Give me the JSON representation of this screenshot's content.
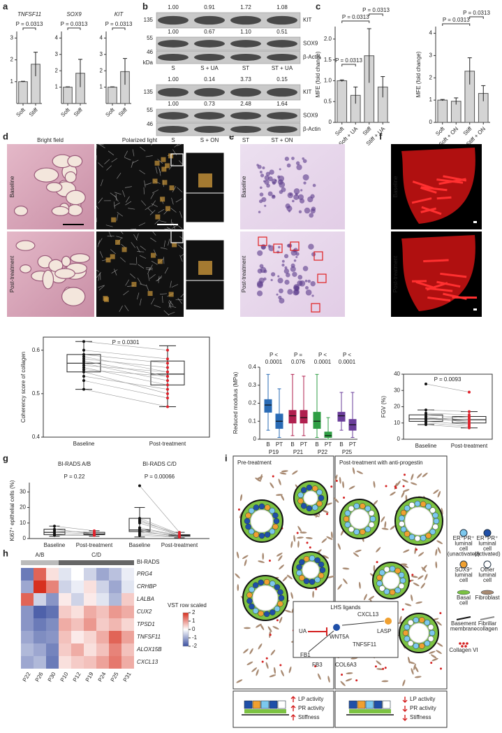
{
  "a": {
    "label": "a",
    "charts": [
      {
        "title": "TNFSF11",
        "p": "P = 0.0313",
        "categories": [
          "Soft",
          "Stiff"
        ],
        "values": [
          1,
          1.8
        ],
        "errors": [
          0.02,
          0.55
        ],
        "ylim": [
          0,
          3.3
        ],
        "yticks": [
          1,
          2,
          3
        ]
      },
      {
        "title": "SOX9",
        "p": "P = 0.0313",
        "categories": [
          "Soft",
          "Stiff"
        ],
        "values": [
          1,
          1.85
        ],
        "errors": [
          0.02,
          0.85
        ],
        "ylim": [
          0,
          4.4
        ],
        "yticks": [
          1,
          2,
          3,
          4
        ]
      },
      {
        "title": "KIT",
        "p": "P = 0.0313",
        "categories": [
          "Soft",
          "Stiff"
        ],
        "values": [
          1,
          1.95
        ],
        "errors": [
          0.02,
          0.8
        ],
        "ylim": [
          0,
          4.4
        ],
        "yticks": [
          1,
          2,
          3,
          4
        ]
      }
    ]
  },
  "b": {
    "label": "b",
    "top": {
      "rows": [
        [
          "1.00",
          "0.91",
          "1.72",
          "1.08"
        ],
        [
          "1.00",
          "0.67",
          "1.10",
          "0.51"
        ]
      ],
      "bands": [
        "KIT",
        "SOX9",
        "β-Actin"
      ],
      "markers": [
        "135",
        "55",
        "46"
      ],
      "unit": "kDa",
      "lanes": [
        "S",
        "S + UA",
        "ST",
        "ST + UA"
      ]
    },
    "bottom": {
      "rows": [
        [
          "1.00",
          "0.14",
          "3.73",
          "0.15"
        ],
        [
          "1.00",
          "0.73",
          "2.48",
          "1.64"
        ]
      ],
      "bands": [
        "KIT",
        "SOX9",
        "β-Actin"
      ],
      "markers": [
        "135",
        "55",
        "46"
      ],
      "lanes": [
        "S",
        "S + ON",
        "ST",
        "ST + ON"
      ]
    }
  },
  "c": {
    "label": "c",
    "charts": [
      {
        "ylabel": "MFE (fold change)",
        "p": [
          "P = 0.0313",
          "P = 0.0313",
          "P = 0.0313"
        ],
        "categories": [
          "Soft",
          "Soft + UA",
          "Stiff",
          "Stiff + UA"
        ],
        "values": [
          1,
          0.65,
          1.6,
          0.85
        ],
        "errors": [
          0.02,
          0.2,
          0.65,
          0.25
        ],
        "ylim": [
          0,
          2.3
        ],
        "yticks": [
          0,
          0.5,
          {
            "value": 1,
            "label": "1.0"
          },
          1.5,
          {
            "value": 2,
            "label": "2.0"
          }
        ]
      },
      {
        "ylabel": "MFE (fold change)",
        "p": [
          "P = 0.0313",
          "P = 0.0313"
        ],
        "categories": [
          "Soft",
          "Soft + ON",
          "Stiff",
          "Stiff + ON"
        ],
        "values": [
          1,
          0.95,
          2.3,
          1.3
        ],
        "errors": [
          0.03,
          0.15,
          0.6,
          0.35
        ],
        "ylim": [
          0,
          4.3
        ],
        "yticks": [
          0,
          1,
          2,
          3,
          4
        ]
      }
    ]
  },
  "d": {
    "label": "d",
    "columns": [
      "Bright field",
      "Polarized light"
    ],
    "rows": [
      "Baseline",
      "Post-treatment"
    ],
    "plot": {
      "ylabel": "Coherency score of collagen",
      "p": "P = 0.0301",
      "categories": [
        "Baseline",
        "Post-treatment"
      ],
      "ylim": [
        0.4,
        0.63
      ],
      "yticks": [
        0.4,
        0.5,
        0.6
      ],
      "boxes": [
        {
          "min": 0.51,
          "q1": 0.55,
          "median": 0.57,
          "q3": 0.59,
          "max": 0.62
        },
        {
          "min": 0.47,
          "q1": 0.52,
          "median": 0.545,
          "q3": 0.575,
          "max": 0.61
        }
      ],
      "baseline_points": [
        0.62,
        0.6,
        0.59,
        0.585,
        0.58,
        0.575,
        0.57,
        0.565,
        0.56,
        0.555,
        0.55,
        0.54,
        0.53,
        0.51
      ],
      "post_points": [
        0.6,
        0.58,
        0.57,
        0.55,
        0.56,
        0.54,
        0.53,
        0.55,
        0.52,
        0.54,
        0.5,
        0.51,
        0.49,
        0.47
      ]
    }
  },
  "e": {
    "label": "e",
    "rows": [
      "Baseline",
      "Post-treatment"
    ],
    "plot": {
      "ylabel": "Reduced modulus (MPa)",
      "ylim": [
        0,
        0.4
      ],
      "yticks": [
        0,
        0.1,
        0.2,
        0.3,
        0.4
      ],
      "sub": [
        "B",
        "PT"
      ],
      "groups": [
        {
          "name": "P19",
          "p": [
            "P <",
            "0.0001"
          ],
          "color": "#2a6bb5",
          "boxes": [
            {
              "min": 0.05,
              "q1": 0.15,
              "median": 0.19,
              "q3": 0.22,
              "max": 0.36
            },
            {
              "min": 0.01,
              "q1": 0.06,
              "median": 0.1,
              "q3": 0.14,
              "max": 0.28
            }
          ]
        },
        {
          "name": "P21",
          "p": [
            "P =",
            "0.076"
          ],
          "color": "#b0204f",
          "boxes": [
            {
              "min": 0.02,
              "q1": 0.09,
              "median": 0.13,
              "q3": 0.16,
              "max": 0.36
            },
            {
              "min": 0.02,
              "q1": 0.09,
              "median": 0.12,
              "q3": 0.16,
              "max": 0.35
            }
          ]
        },
        {
          "name": "P22",
          "p": [
            "P <",
            "0.0001"
          ],
          "color": "#2f9e44",
          "boxes": [
            {
              "min": 0.01,
              "q1": 0.06,
              "median": 0.1,
              "q3": 0.15,
              "max": 0.36
            },
            {
              "min": 0,
              "q1": 0.01,
              "median": 0.02,
              "q3": 0.04,
              "max": 0.12
            }
          ]
        },
        {
          "name": "P25",
          "p": [
            "P <",
            "0.0001"
          ],
          "color": "#6a3d9a",
          "boxes": [
            {
              "min": 0.05,
              "q1": 0.1,
              "median": 0.13,
              "q3": 0.15,
              "max": 0.26
            },
            {
              "min": 0.01,
              "q1": 0.05,
              "median": 0.08,
              "q3": 0.11,
              "max": 0.26
            }
          ]
        }
      ]
    }
  },
  "f": {
    "label": "f",
    "rows": [
      "Baseline",
      "Post-treatment"
    ],
    "plot": {
      "ylabel": "FGV (%)",
      "p": "P = 0.0093",
      "categories": [
        "Baseline",
        "Post-treatment"
      ],
      "ylim": [
        0,
        40
      ],
      "yticks": [
        0,
        10,
        20,
        30,
        40
      ],
      "boxes": [
        {
          "min": 9,
          "q1": 11,
          "median": 12.5,
          "q3": 15,
          "max": 18
        },
        {
          "min": 7,
          "q1": 10,
          "median": 12,
          "q3": 14,
          "max": 17
        }
      ],
      "baseline_points": [
        34,
        18,
        16,
        15,
        14,
        13,
        12.5,
        12,
        11,
        10,
        9
      ],
      "post_points": [
        29,
        17,
        15,
        13,
        10,
        12,
        11,
        14,
        9,
        8,
        7
      ]
    }
  },
  "g": {
    "label": "g",
    "ylabel": "Ki67⁺ epithelial cells (%)",
    "ylim": [
      0,
      36
    ],
    "yticks": [
      0,
      10,
      20,
      30
    ],
    "groups": [
      {
        "title": "BI-RADS A/B",
        "p": "P = 0.22",
        "categories": [
          "Baseline",
          "Post-treatment"
        ],
        "boxes": [
          {
            "min": 1.5,
            "q1": 2.5,
            "median": 4,
            "q3": 6,
            "max": 8
          },
          {
            "min": 1.5,
            "q1": 2.5,
            "median": 3,
            "q3": 4,
            "max": 5
          }
        ],
        "baseline_points": [
          8,
          6,
          5,
          4,
          3,
          2
        ],
        "post_points": [
          5,
          3,
          4,
          3,
          2,
          2
        ]
      },
      {
        "title": "BI-RADS C/D",
        "p": "P = 0.00066",
        "categories": [
          "Baseline",
          "Post-treatment"
        ],
        "boxes": [
          {
            "min": 1,
            "q1": 4.5,
            "median": 5.5,
            "q3": 13,
            "max": 20
          },
          {
            "min": 0.5,
            "q1": 1.5,
            "median": 2,
            "q3": 2.5,
            "max": 4
          }
        ],
        "baseline_points": [
          34,
          13,
          12,
          11,
          10,
          7,
          6,
          5,
          5,
          4,
          3,
          2
        ],
        "post_points": [
          4,
          3,
          2,
          3,
          2,
          2,
          2,
          1,
          1,
          2,
          1,
          1
        ]
      }
    ]
  },
  "h": {
    "label": "h",
    "groups": [
      "A/B",
      "C/D"
    ],
    "annotation": "BI-RADS",
    "genes": [
      "PRG4",
      "CRHBP",
      "LALBA",
      "CUX2",
      "TPSD1",
      "TNFSF11",
      "ALOX15B",
      "CXCL13"
    ],
    "samples": [
      "P22",
      "P26",
      "P30",
      "P10",
      "P12",
      "P19",
      "P24",
      "P25",
      "P31"
    ],
    "legend_title": "VST row scaled",
    "legend_ticks": [
      2,
      1,
      0,
      -1,
      -2
    ],
    "values": [
      [
        -1.5,
        1.5,
        0.3,
        -0.3,
        0,
        -0.5,
        -1,
        -0.7,
        -0.2
      ],
      [
        -1,
        2,
        1.2,
        -0.5,
        -0.2,
        0.3,
        -0.5,
        -1,
        -0.3
      ],
      [
        1.5,
        -0.5,
        -1.2,
        0.2,
        -0.5,
        0.2,
        -0.3,
        -0.8,
        0.5
      ],
      [
        -1.2,
        -1.8,
        -1.6,
        0.5,
        0.3,
        0.8,
        0.6,
        1,
        0.8
      ],
      [
        -1.2,
        -1.5,
        -1.3,
        0.8,
        0.6,
        1,
        0.5,
        0.7,
        0.4
      ],
      [
        -1,
        -1.3,
        -1.2,
        0.6,
        0.2,
        0.4,
        0.8,
        1.5,
        0.9
      ],
      [
        -0.8,
        -1,
        -1.4,
        0.5,
        0.8,
        0.3,
        0.6,
        1.2,
        0.6
      ],
      [
        -1,
        -0.8,
        -1.5,
        0.3,
        0.5,
        0.6,
        0.9,
        1.3,
        0.8
      ]
    ]
  },
  "i": {
    "label": "i",
    "pre": "Pre-treatment",
    "post": "Post-treatment with anti-progestin",
    "lhs": "LHS ligands",
    "items": [
      "UA",
      "CXCL13",
      "WNT5A",
      "TNFSF11",
      "LASP",
      "FB1",
      "FB3",
      "COL6A3"
    ],
    "effects": [
      "LP activity",
      "PR activity",
      "Stiffness"
    ],
    "legend": [
      {
        "lines": [
          "ER⁺PR⁺",
          "luminal",
          "cell",
          "(unactivated)"
        ]
      },
      {
        "lines": [
          "ER⁺PR⁺",
          "luminal",
          "cell",
          "(activated)"
        ]
      },
      {
        "lines": [
          "SOX9⁺",
          "luminal",
          "cell"
        ]
      },
      {
        "lines": [
          "Other",
          "luminal",
          "cell"
        ]
      },
      {
        "lines": [
          "Basal",
          "cell"
        ]
      },
      {
        "lines": [
          "Fibroblast"
        ]
      },
      {
        "lines": [
          "Basement",
          "membrane"
        ]
      },
      {
        "lines": [
          "Fibrillar",
          "collagen"
        ]
      },
      {
        "lines": [
          "Collagen VI"
        ]
      }
    ]
  }
}
